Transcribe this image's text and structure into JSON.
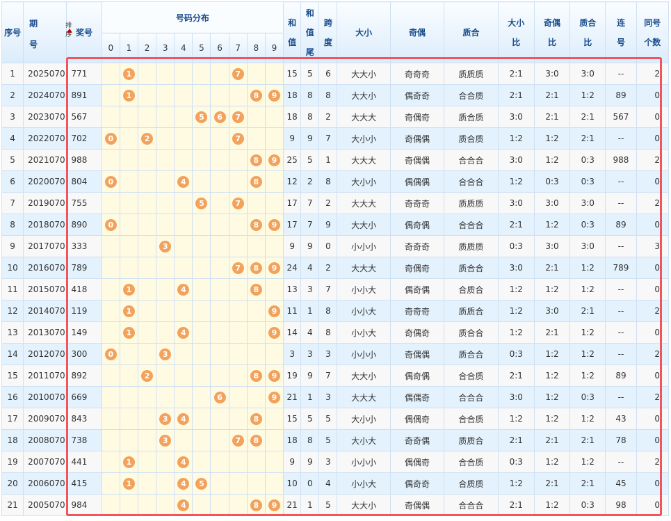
{
  "headers": {
    "seq": "序号",
    "issue_a": "期",
    "issue_b": "号",
    "sort": "排序",
    "number": "奖号",
    "dist": "号码分布",
    "digits": [
      "0",
      "1",
      "2",
      "3",
      "4",
      "5",
      "6",
      "7",
      "8",
      "9"
    ],
    "sum_a": "和",
    "sum_b": "值",
    "tail_a": "和",
    "tail_b": "值",
    "tail_c": "尾",
    "span_a": "跨",
    "span_b": "度",
    "bs": "大小",
    "oe": "奇偶",
    "pc": "质合",
    "bsr_a": "大小",
    "bsr_b": "比",
    "oer_a": "奇偶",
    "oer_b": "比",
    "pcr_a": "质合",
    "pcr_b": "比",
    "cons_a": "连",
    "cons_b": "号",
    "same_a": "同号",
    "same_b": "个数"
  },
  "colors": {
    "ball": "#f2a25c",
    "highlight_box": "#f2545b",
    "header_text": "#1a4d8c"
  },
  "rows": [
    [
      "1",
      "2025070",
      "771",
      "15",
      "5",
      "6",
      "大大小",
      "奇奇奇",
      "质质质",
      "2:1",
      "3:0",
      "3:0",
      "--",
      "2"
    ],
    [
      "2",
      "2024070",
      "891",
      "18",
      "8",
      "8",
      "大大小",
      "偶奇奇",
      "合合质",
      "2:1",
      "2:1",
      "1:2",
      "89",
      "0"
    ],
    [
      "3",
      "2023070",
      "567",
      "18",
      "8",
      "2",
      "大大大",
      "奇偶奇",
      "质合质",
      "3:0",
      "2:1",
      "2:1",
      "567",
      "0"
    ],
    [
      "4",
      "2022070",
      "702",
      "9",
      "9",
      "7",
      "大小小",
      "奇偶偶",
      "质合质",
      "1:2",
      "1:2",
      "2:1",
      "--",
      "0"
    ],
    [
      "5",
      "2021070",
      "988",
      "25",
      "5",
      "1",
      "大大大",
      "奇偶偶",
      "合合合",
      "3:0",
      "1:2",
      "0:3",
      "988",
      "2"
    ],
    [
      "6",
      "2020070",
      "804",
      "12",
      "2",
      "8",
      "大小小",
      "偶偶偶",
      "合合合",
      "1:2",
      "0:3",
      "0:3",
      "--",
      "0"
    ],
    [
      "7",
      "2019070",
      "755",
      "17",
      "7",
      "2",
      "大大大",
      "奇奇奇",
      "质质质",
      "3:0",
      "3:0",
      "3:0",
      "--",
      "2"
    ],
    [
      "8",
      "2018070",
      "890",
      "17",
      "7",
      "9",
      "大大小",
      "偶奇偶",
      "合合合",
      "2:1",
      "1:2",
      "0:3",
      "89",
      "0"
    ],
    [
      "9",
      "2017070",
      "333",
      "9",
      "9",
      "0",
      "小小小",
      "奇奇奇",
      "质质质",
      "0:3",
      "3:0",
      "3:0",
      "--",
      "3"
    ],
    [
      "10",
      "2016070",
      "789",
      "24",
      "4",
      "2",
      "大大大",
      "奇偶奇",
      "质合合",
      "3:0",
      "2:1",
      "1:2",
      "789",
      "0"
    ],
    [
      "11",
      "2015070",
      "418",
      "13",
      "3",
      "7",
      "小小大",
      "偶奇偶",
      "合质合",
      "1:2",
      "1:2",
      "1:2",
      "--",
      "0"
    ],
    [
      "12",
      "2014070",
      "119",
      "11",
      "1",
      "8",
      "小小大",
      "奇奇奇",
      "质质合",
      "1:2",
      "3:0",
      "2:1",
      "--",
      "2"
    ],
    [
      "13",
      "2013070",
      "149",
      "14",
      "4",
      "8",
      "小小大",
      "奇偶奇",
      "质合合",
      "1:2",
      "2:1",
      "1:2",
      "--",
      "0"
    ],
    [
      "14",
      "2012070",
      "300",
      "3",
      "3",
      "3",
      "小小小",
      "奇偶偶",
      "质合合",
      "0:3",
      "1:2",
      "1:2",
      "--",
      "2"
    ],
    [
      "15",
      "2011070",
      "892",
      "19",
      "9",
      "7",
      "大大小",
      "偶奇偶",
      "合合质",
      "2:1",
      "1:2",
      "1:2",
      "89",
      "0"
    ],
    [
      "16",
      "2010070",
      "669",
      "21",
      "1",
      "3",
      "大大大",
      "偶偶奇",
      "合合合",
      "3:0",
      "1:2",
      "0:3",
      "--",
      "2"
    ],
    [
      "17",
      "2009070",
      "843",
      "15",
      "5",
      "5",
      "大小小",
      "偶偶奇",
      "合合质",
      "1:2",
      "1:2",
      "1:2",
      "43",
      "0"
    ],
    [
      "18",
      "2008070",
      "738",
      "18",
      "8",
      "5",
      "大小大",
      "奇奇偶",
      "质质合",
      "2:1",
      "2:1",
      "2:1",
      "78",
      "0"
    ],
    [
      "19",
      "2007070",
      "441",
      "9",
      "9",
      "3",
      "小小小",
      "偶偶奇",
      "合合质",
      "0:3",
      "1:2",
      "1:2",
      "--",
      "2"
    ],
    [
      "20",
      "2006070",
      "415",
      "10",
      "0",
      "4",
      "小小大",
      "偶奇奇",
      "合质质",
      "1:2",
      "2:1",
      "2:1",
      "45",
      "0"
    ],
    [
      "21",
      "2005070",
      "984",
      "21",
      "1",
      "5",
      "大大小",
      "奇偶偶",
      "合合合",
      "2:1",
      "1:2",
      "0:3",
      "98",
      "0"
    ]
  ]
}
